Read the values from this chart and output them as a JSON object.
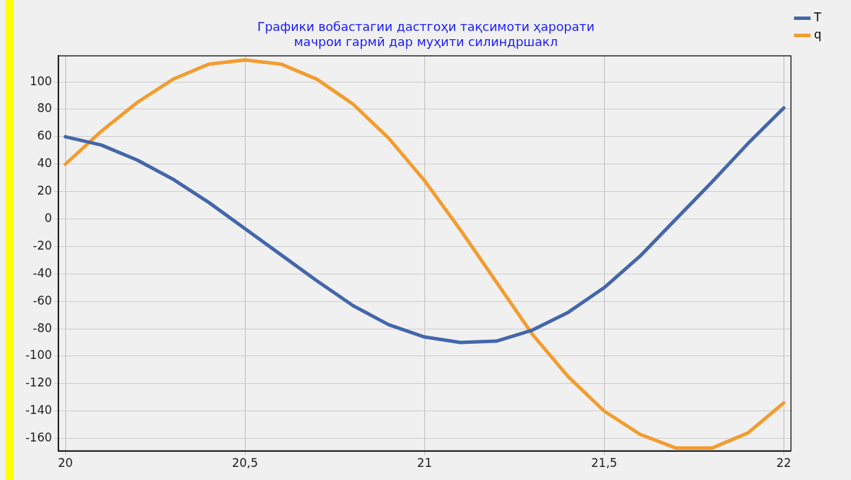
{
  "chart_data": {
    "type": "line",
    "title": [
      "Графики вобастагии дастгоҳи тақсимоти ҳарорати",
      "мачрои гармӣ дар муҳити силиндршакл"
    ],
    "x": [
      20,
      20.1,
      20.2,
      20.3,
      20.4,
      20.5,
      20.6,
      20.7,
      20.8,
      20.9,
      21,
      21.1,
      21.2,
      21.3,
      21.4,
      21.5,
      21.6,
      21.7,
      21.8,
      21.9,
      22
    ],
    "series": [
      {
        "name": "T",
        "color": "#4466aa",
        "values": [
          60,
          54,
          43,
          29,
          12,
          -7,
          -26,
          -45,
          -63,
          -77,
          -86,
          -90,
          -89,
          -81,
          -68,
          -50,
          -27,
          0,
          27,
          55,
          81
        ]
      },
      {
        "name": "q",
        "color": "#f39c2f",
        "values": [
          40,
          64,
          85,
          102,
          113,
          116,
          113,
          102,
          84,
          59,
          28,
          -8,
          -46,
          -84,
          -115,
          -140,
          -157,
          -167,
          -167,
          -156,
          -134
        ]
      }
    ],
    "xlim": [
      19.98,
      22.02
    ],
    "ylim": [
      -169,
      119
    ],
    "xticks": [
      20,
      {
        "value": 20.5,
        "label": "20,5"
      },
      21,
      {
        "value": 21.5,
        "label": "21,5"
      },
      22
    ],
    "yticks": [
      -160,
      -140,
      -120,
      -100,
      -80,
      -60,
      -40,
      -20,
      0,
      20,
      40,
      60,
      80,
      100
    ],
    "grid": true,
    "legend": "top right",
    "marker": "none",
    "line_style": "solid"
  }
}
